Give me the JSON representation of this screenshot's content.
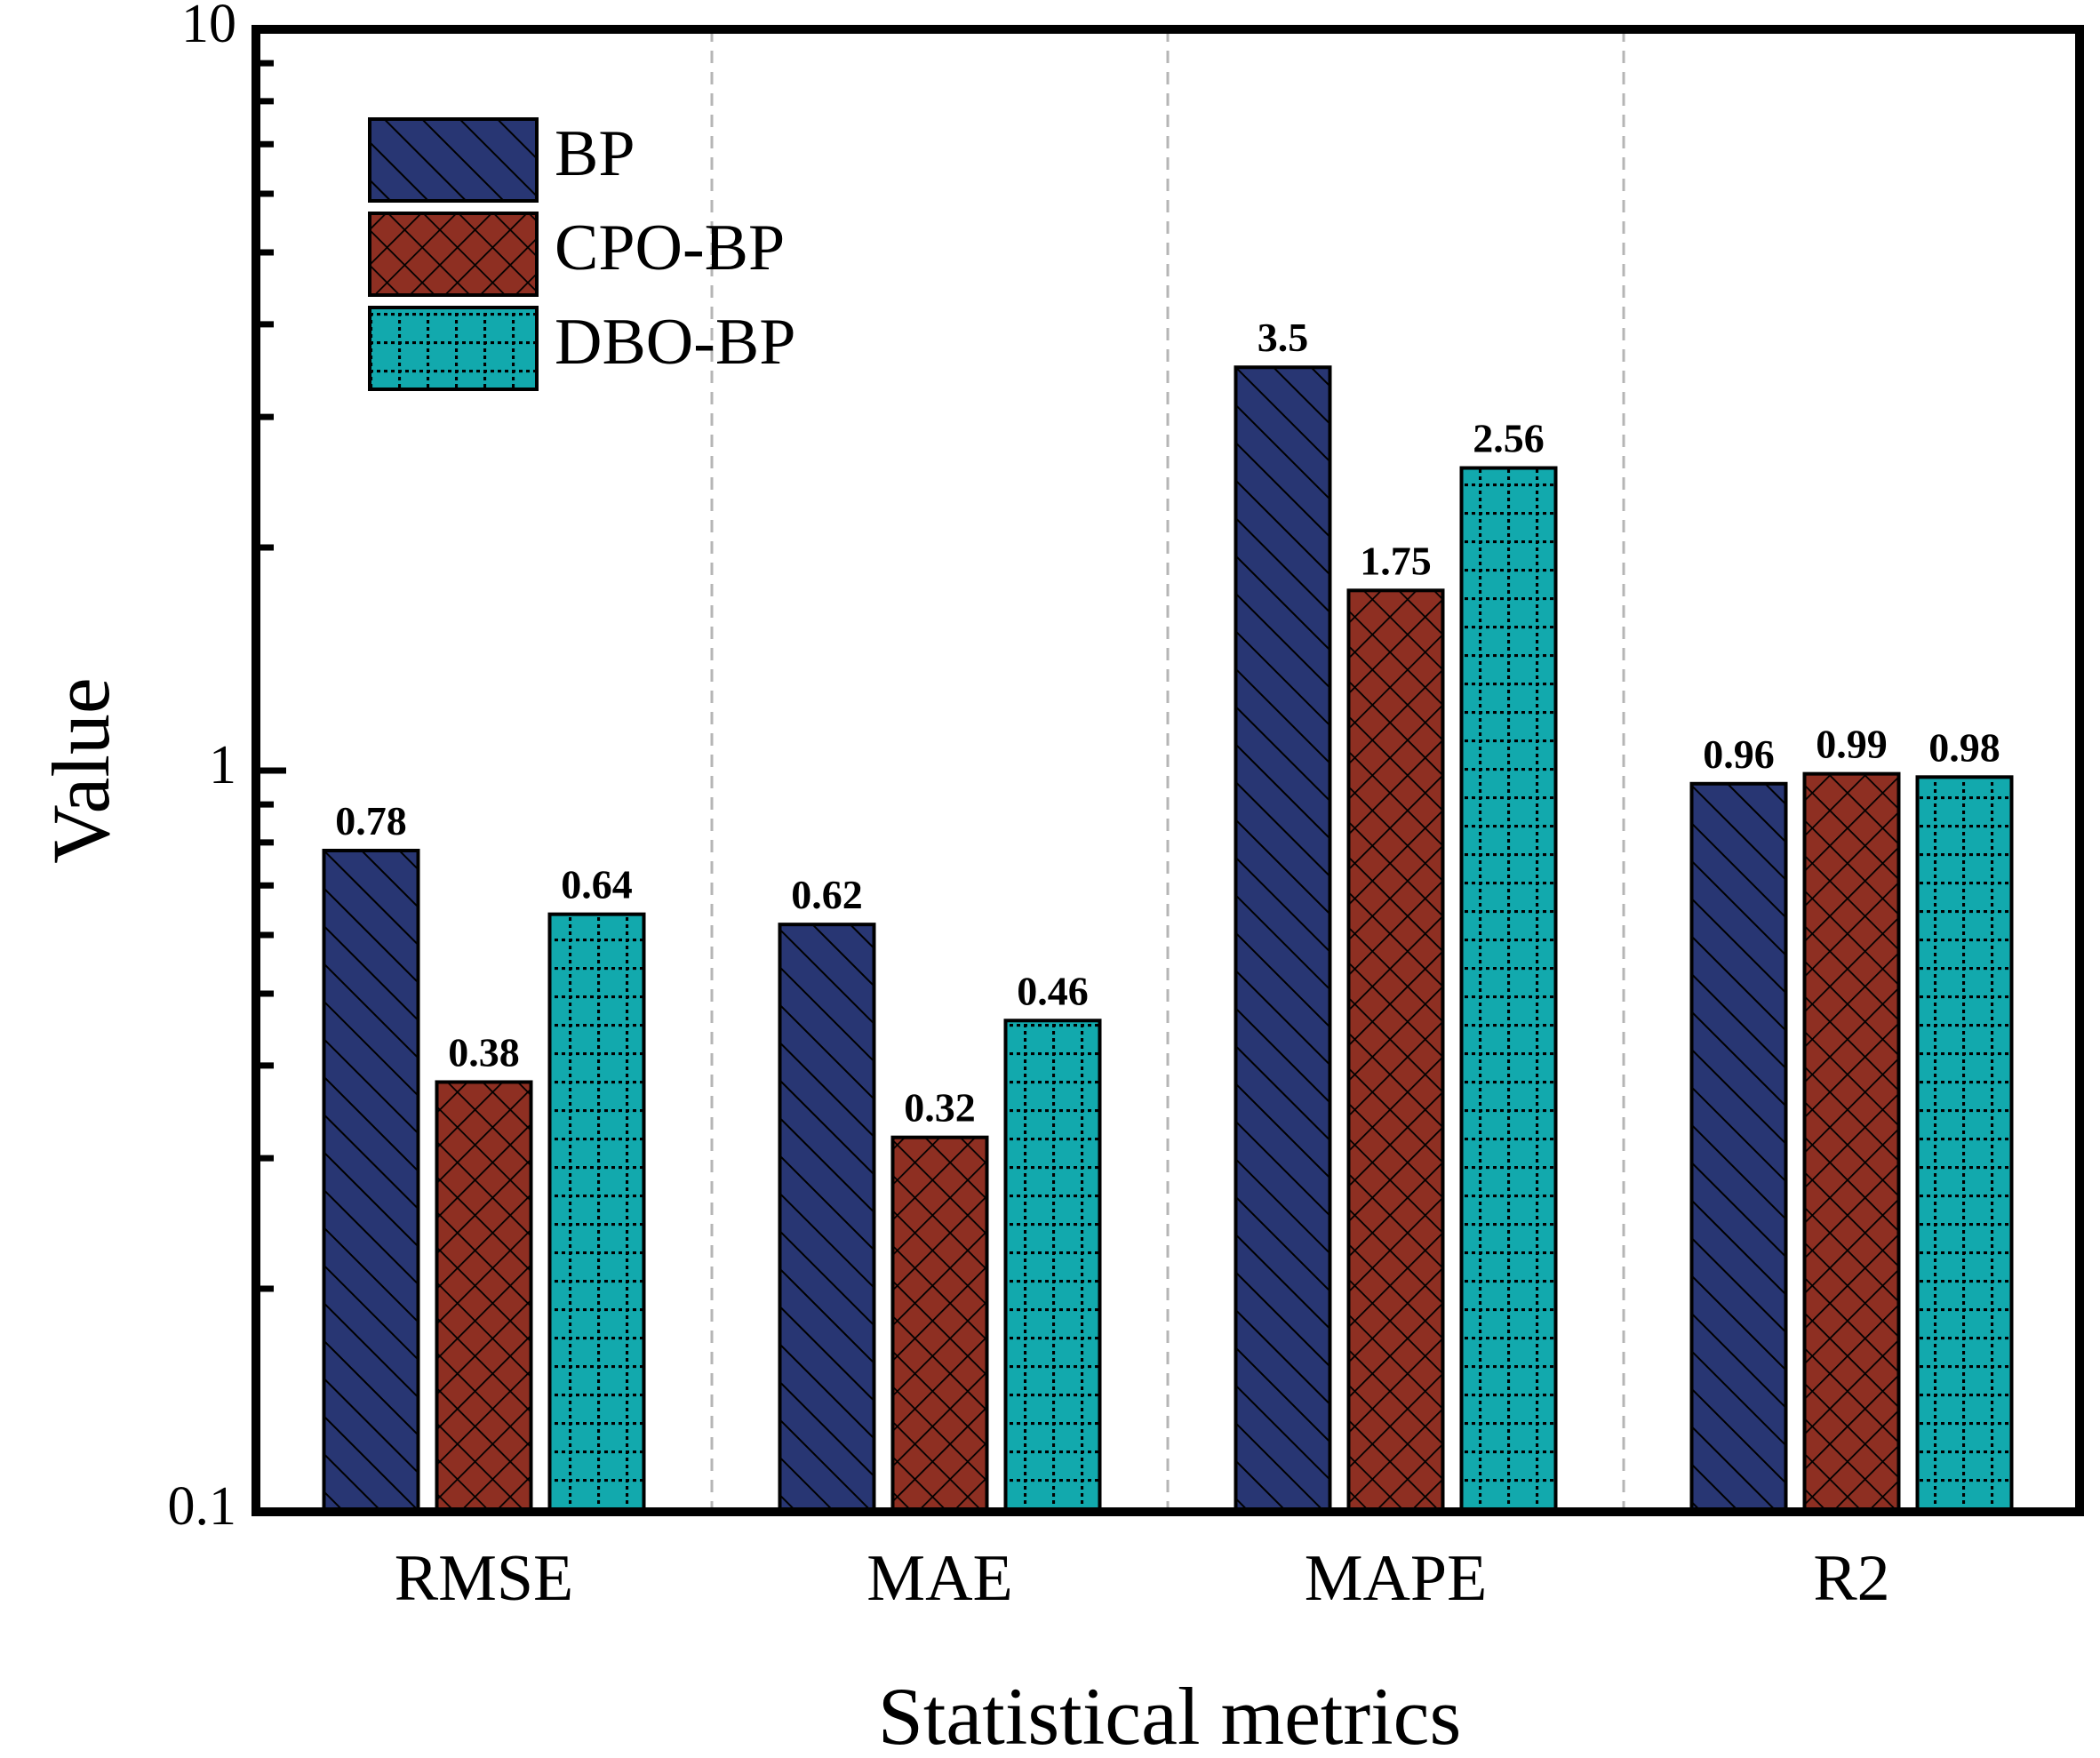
{
  "chart_data": {
    "type": "bar",
    "title": "",
    "xlabel": "Statistical metrics",
    "ylabel": "Value",
    "yscale": "log",
    "ylim": [
      0.1,
      10
    ],
    "yticks": [
      {
        "value": 0.1,
        "label": "0.1"
      },
      {
        "value": 1,
        "label": "1"
      },
      {
        "value": 10,
        "label": "10"
      }
    ],
    "grid": "vertical dashed separators between categories",
    "legend_position": "top-left",
    "categories": [
      "RMSE",
      "MAE",
      "MAPE",
      "R2"
    ],
    "series": [
      {
        "name": "BP",
        "color": "#283673",
        "pattern": "diagonal-hatch",
        "values": [
          0.78,
          0.62,
          3.5,
          0.96
        ],
        "labels": [
          "0.78",
          "0.62",
          "3.5",
          "0.96"
        ]
      },
      {
        "name": "CPO-BP",
        "color": "#8e2f22",
        "pattern": "cross-hatch",
        "values": [
          0.38,
          0.32,
          1.75,
          0.99
        ],
        "labels": [
          "0.38",
          "0.32",
          "1.75",
          "0.99"
        ]
      },
      {
        "name": "DBO-BP",
        "color": "#12a9ad",
        "pattern": "dotted-grid",
        "values": [
          0.64,
          0.46,
          2.56,
          0.98
        ],
        "labels": [
          "0.64",
          "0.46",
          "2.56",
          "0.98"
        ]
      }
    ]
  }
}
